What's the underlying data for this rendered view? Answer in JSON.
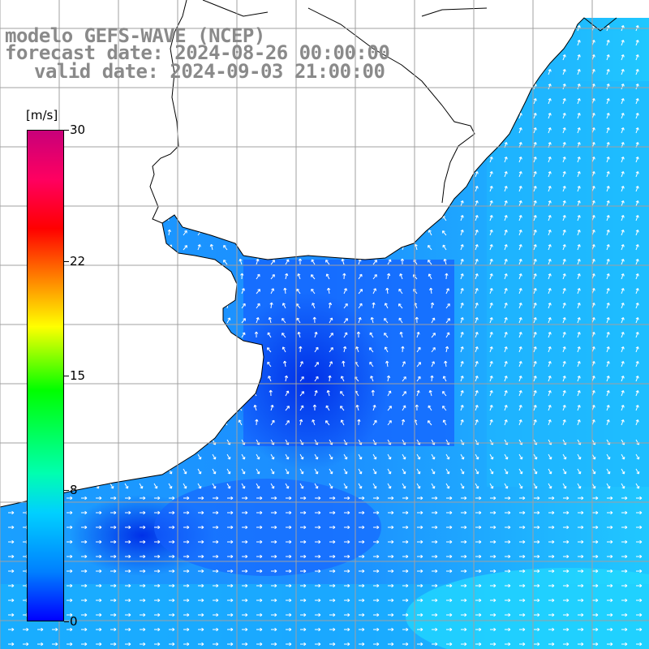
{
  "title": {
    "model": "modelo GEFS-WAVE (NCEP)",
    "forecast": "forecast date: 2024-08-26 00:00:00",
    "valid": "valid date: 2024-09-03 21:00:00"
  },
  "colorbar": {
    "unit": "[m/s]",
    "ticks": [
      "30",
      "22",
      "15",
      "8",
      "0"
    ],
    "tick_values": [
      30,
      22,
      15,
      8,
      0
    ],
    "range": [
      0,
      30
    ],
    "colors": [
      "#0000ff",
      "#0080ff",
      "#00d0ff",
      "#00ffb0",
      "#00ff00",
      "#ffff00",
      "#ff8000",
      "#ff0000",
      "#ff0060",
      "#c8007a"
    ]
  },
  "map": {
    "ocean_colors": {
      "low": "#0a3cf0",
      "mid": "#1478ff",
      "high": "#1fc8ff"
    },
    "land_color": "#ffffff",
    "grid_color": "#a0a0a0",
    "grid": true,
    "vector_color": "#ffffff"
  }
}
